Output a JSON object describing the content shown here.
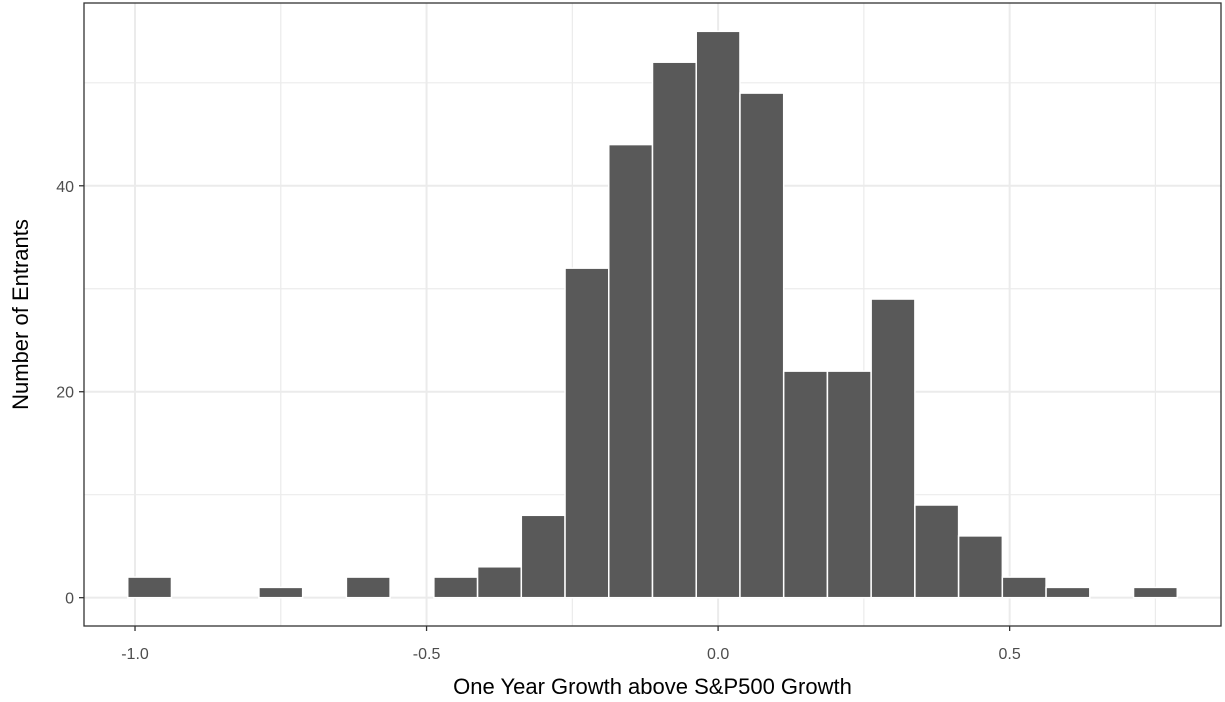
{
  "chart_data": {
    "type": "bar",
    "xlabel": "One Year Growth above S&P500 Growth",
    "ylabel": "Number of Entrants",
    "bin_width": 0.075,
    "bins": [
      {
        "x": -0.975,
        "count": 2
      },
      {
        "x": -0.9,
        "count": 0
      },
      {
        "x": -0.825,
        "count": 0
      },
      {
        "x": -0.75,
        "count": 1
      },
      {
        "x": -0.675,
        "count": 0
      },
      {
        "x": -0.6,
        "count": 2
      },
      {
        "x": -0.525,
        "count": 0
      },
      {
        "x": -0.45,
        "count": 2
      },
      {
        "x": -0.375,
        "count": 3
      },
      {
        "x": -0.3,
        "count": 8
      },
      {
        "x": -0.225,
        "count": 32
      },
      {
        "x": -0.15,
        "count": 44
      },
      {
        "x": -0.075,
        "count": 52
      },
      {
        "x": 0.0,
        "count": 55
      },
      {
        "x": 0.075,
        "count": 49
      },
      {
        "x": 0.15,
        "count": 22
      },
      {
        "x": 0.225,
        "count": 22
      },
      {
        "x": 0.3,
        "count": 29
      },
      {
        "x": 0.375,
        "count": 9
      },
      {
        "x": 0.45,
        "count": 6
      },
      {
        "x": 0.525,
        "count": 2
      },
      {
        "x": 0.6,
        "count": 1
      },
      {
        "x": 0.675,
        "count": 0
      },
      {
        "x": 0.75,
        "count": 1
      }
    ],
    "x_ticks": [
      {
        "value": -1.0,
        "label": "-1.0"
      },
      {
        "value": -0.5,
        "label": "-0.5"
      },
      {
        "value": 0.0,
        "label": "0.0"
      },
      {
        "value": 0.5,
        "label": "0.5"
      }
    ],
    "y_ticks": [
      {
        "value": 0,
        "label": "0"
      },
      {
        "value": 20,
        "label": "20"
      },
      {
        "value": 40,
        "label": "40"
      }
    ],
    "xlim": [
      -1.0875,
      0.8625
    ],
    "ylim": [
      -2.75,
      57.75
    ],
    "grid": true,
    "colors": {
      "bar_fill": "#595959",
      "bar_outline": "#ffffff",
      "grid": "#ebebeb",
      "panel_border": "#333333"
    }
  }
}
